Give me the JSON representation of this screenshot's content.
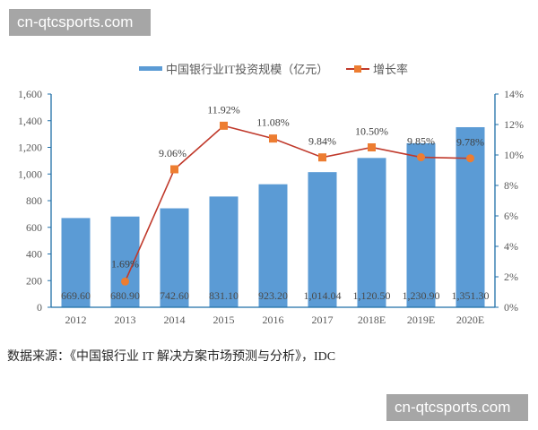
{
  "watermarks": {
    "top": "cn-qtcsports.com",
    "bottom": "cn-qtcsports.com"
  },
  "legend": {
    "bar_label": "中国银行业IT投资规模（亿元）",
    "line_label": "增长率"
  },
  "source_note": "数据来源：《中国银行业 IT 解决方案市场预测与分析》，IDC",
  "colors": {
    "bar": "#5b9bd5",
    "line": "#c0392b",
    "marker": "#ed7d31",
    "axis": "#1f6fa8"
  },
  "chart_data": {
    "type": "bar+line",
    "title": "",
    "categories": [
      "2012",
      "2013",
      "2014",
      "2015",
      "2016",
      "2017",
      "2018E",
      "2019E",
      "2020E"
    ],
    "series": [
      {
        "name": "中国银行业IT投资规模（亿元）",
        "type": "bar",
        "axis": "left",
        "values": [
          669.6,
          680.9,
          742.6,
          831.1,
          923.2,
          1014.04,
          1120.5,
          1230.9,
          1351.3
        ],
        "labels": [
          "669.60",
          "680.90",
          "742.60",
          "831.10",
          "923.20",
          "1,014.04",
          "1,120.50",
          "1,230.90",
          "1,351.30"
        ]
      },
      {
        "name": "增长率",
        "type": "line",
        "axis": "right",
        "values": [
          null,
          1.69,
          9.06,
          11.92,
          11.08,
          9.84,
          10.5,
          9.85,
          9.78
        ],
        "labels": [
          "",
          "1.69%",
          "9.06%",
          "11.92%",
          "11.08%",
          "9.84%",
          "10.50%",
          "9.85%",
          "9.78%"
        ]
      }
    ],
    "left_axis": {
      "ylim": [
        0,
        1600
      ],
      "ticks": [
        "0",
        "200",
        "400",
        "600",
        "800",
        "1,000",
        "1,200",
        "1,400",
        "1,600"
      ]
    },
    "right_axis": {
      "ylim": [
        0,
        14
      ],
      "ticks": [
        "0%",
        "2%",
        "4%",
        "6%",
        "8%",
        "10%",
        "12%",
        "14%"
      ]
    },
    "xlabel": "",
    "ylabel": "",
    "grid": false,
    "legend_position": "top"
  }
}
